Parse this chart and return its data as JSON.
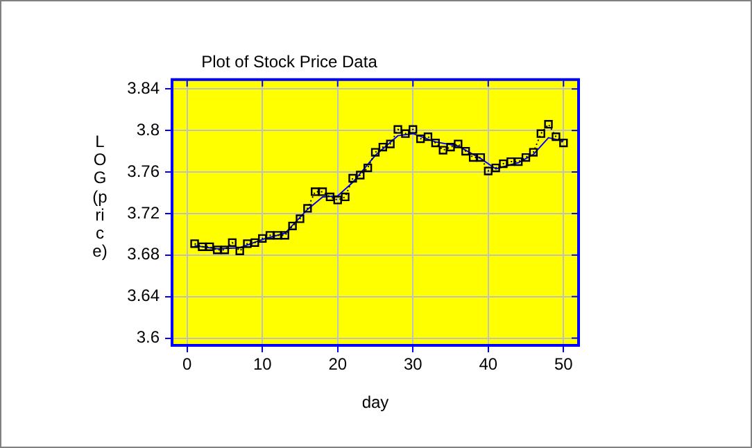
{
  "chart_data": {
    "type": "line",
    "title": "Plot of Stock Price Data",
    "xlabel": "day",
    "ylabel": "LOG(price)",
    "xlim": [
      -2,
      52
    ],
    "xticks": [
      0,
      10,
      20,
      30,
      40,
      50
    ],
    "ylim": [
      3.593,
      3.849
    ],
    "yticks": [
      3.6,
      3.64,
      3.68,
      3.72,
      3.76,
      3.8,
      3.84
    ],
    "grid": true,
    "legend": false,
    "series": [
      {
        "color": "#000000",
        "marker": "square",
        "line_style": "dotted",
        "x": [
          1,
          2,
          3,
          4,
          5,
          6,
          7,
          8,
          9,
          10,
          11,
          12,
          13,
          14,
          15,
          16,
          17,
          18,
          19,
          20,
          21,
          22,
          23,
          24,
          25,
          26,
          27,
          28,
          29,
          30,
          31,
          32,
          33,
          34,
          35,
          36,
          37,
          38,
          39,
          40,
          41,
          42,
          43,
          44,
          45,
          46,
          47,
          48,
          49,
          50
        ],
        "values": [
          3.691,
          3.688,
          3.688,
          3.685,
          3.685,
          3.692,
          3.684,
          3.691,
          3.692,
          3.696,
          3.699,
          3.699,
          3.699,
          3.708,
          3.715,
          3.725,
          3.741,
          3.741,
          3.736,
          3.733,
          3.736,
          3.754,
          3.757,
          3.764,
          3.779,
          3.784,
          3.787,
          3.801,
          3.797,
          3.801,
          3.792,
          3.794,
          3.788,
          3.781,
          3.784,
          3.787,
          3.78,
          3.774,
          3.774,
          3.761,
          3.764,
          3.768,
          3.77,
          3.77,
          3.774,
          3.779,
          3.797,
          3.806,
          3.794,
          3.788
        ]
      },
      {
        "color": "#0000ff",
        "marker": "none",
        "line_style": "solid",
        "x": [
          1,
          4,
          7,
          10,
          13,
          16,
          18,
          20,
          22,
          25,
          28,
          30,
          33,
          36,
          39,
          41,
          44,
          46,
          48,
          50
        ],
        "values": [
          3.689,
          3.686,
          3.687,
          3.695,
          3.701,
          3.724,
          3.736,
          3.737,
          3.75,
          3.776,
          3.795,
          3.797,
          3.789,
          3.785,
          3.773,
          3.763,
          3.769,
          3.777,
          3.793,
          3.79
        ]
      }
    ]
  }
}
